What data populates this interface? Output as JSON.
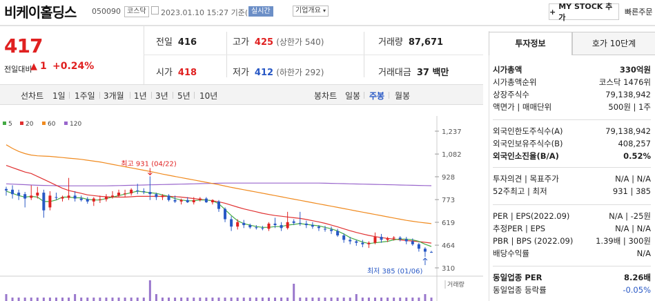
{
  "header": {
    "company_name": "비케이홀딩스",
    "code": "050090",
    "market": "코스닥",
    "datetime": "2023.01.10 15:27 기준(장중)",
    "realtime": "실시간",
    "company_overview": "기업개요",
    "mystock_label": "MY STOCK 추가",
    "quick_order": "빠른주문"
  },
  "price": {
    "current": "417",
    "change_label": "전일대비",
    "change": "1",
    "change_pct": "+0.24%"
  },
  "stats": {
    "prev_label": "전일",
    "prev": "416",
    "high_label": "고가",
    "high": "425",
    "upper_limit": "(상한가 540)",
    "volume_label": "거래량",
    "volume": "87,671",
    "open_label": "시가",
    "open": "418",
    "low_label": "저가",
    "low": "412",
    "lower_limit": "(하한가 292)",
    "amount_label": "거래대금",
    "amount": "37 백만"
  },
  "tabs": {
    "line_chart": "선차트",
    "periods": [
      "1일",
      "1주일",
      "3개월",
      "1년",
      "3년",
      "5년",
      "10년"
    ],
    "candle_chart": "봉차트",
    "candles": [
      "일봉",
      "주봉",
      "월봉"
    ],
    "active_candle": "주봉"
  },
  "chart": {
    "legend": [
      {
        "label": "5",
        "color": "#44aa44"
      },
      {
        "label": "20",
        "color": "#e03030"
      },
      {
        "label": "60",
        "color": "#f08a1e"
      },
      {
        "label": "120",
        "color": "#9966cc"
      }
    ],
    "y_ticks": [
      "1,237",
      "1,082",
      "928",
      "773",
      "619",
      "464",
      "310"
    ],
    "high_annotation": "최고 931 (04/22)",
    "low_annotation": "최저 385 (01/06)",
    "volume_label": "거래량"
  },
  "chart_data": {
    "type": "candlestick",
    "ylim": [
      310,
      1237
    ],
    "y_ticks": [
      1237,
      1082,
      928,
      773,
      619,
      464,
      310
    ],
    "candles": [
      [
        845,
        860,
        800,
        835
      ],
      [
        840,
        870,
        780,
        810
      ],
      [
        820,
        840,
        770,
        800
      ],
      [
        810,
        825,
        720,
        780
      ],
      [
        785,
        870,
        770,
        800
      ],
      [
        800,
        860,
        780,
        820
      ],
      [
        820,
        840,
        650,
        700
      ],
      [
        720,
        830,
        700,
        800
      ],
      [
        790,
        820,
        770,
        785
      ],
      [
        780,
        800,
        760,
        790
      ],
      [
        785,
        920,
        770,
        800
      ],
      [
        800,
        830,
        760,
        780
      ],
      [
        780,
        800,
        760,
        770
      ],
      [
        775,
        790,
        745,
        760
      ],
      [
        760,
        790,
        730,
        780
      ],
      [
        770,
        800,
        750,
        775
      ],
      [
        775,
        810,
        760,
        790
      ],
      [
        790,
        830,
        780,
        800
      ],
      [
        800,
        840,
        790,
        820
      ],
      [
        810,
        840,
        790,
        815
      ],
      [
        815,
        850,
        800,
        840
      ],
      [
        835,
        880,
        810,
        830
      ],
      [
        830,
        850,
        810,
        825
      ],
      [
        825,
        931,
        770,
        810
      ],
      [
        810,
        820,
        770,
        790
      ],
      [
        790,
        810,
        770,
        800
      ],
      [
        800,
        810,
        760,
        770
      ],
      [
        770,
        800,
        750,
        760
      ],
      [
        760,
        780,
        740,
        770
      ],
      [
        770,
        790,
        750,
        755
      ],
      [
        755,
        790,
        740,
        770
      ],
      [
        770,
        790,
        760,
        780
      ],
      [
        780,
        790,
        750,
        755
      ],
      [
        755,
        775,
        740,
        770
      ],
      [
        760,
        770,
        690,
        710
      ],
      [
        710,
        720,
        620,
        640
      ],
      [
        640,
        660,
        560,
        590
      ],
      [
        590,
        640,
        570,
        620
      ],
      [
        615,
        635,
        580,
        600
      ],
      [
        600,
        610,
        575,
        585
      ],
      [
        585,
        600,
        570,
        580
      ],
      [
        580,
        595,
        565,
        575
      ],
      [
        575,
        620,
        560,
        610
      ],
      [
        610,
        650,
        580,
        600
      ],
      [
        600,
        620,
        560,
        580
      ],
      [
        580,
        690,
        570,
        620
      ],
      [
        625,
        640,
        600,
        615
      ],
      [
        615,
        690,
        595,
        610
      ],
      [
        610,
        630,
        580,
        600
      ],
      [
        600,
        620,
        575,
        590
      ],
      [
        590,
        600,
        560,
        580
      ],
      [
        575,
        595,
        555,
        570
      ],
      [
        570,
        590,
        540,
        560
      ],
      [
        560,
        575,
        520,
        530
      ],
      [
        530,
        545,
        480,
        500
      ],
      [
        500,
        520,
        470,
        490
      ],
      [
        490,
        500,
        460,
        480
      ],
      [
        480,
        500,
        450,
        470
      ],
      [
        470,
        490,
        445,
        480
      ],
      [
        480,
        550,
        470,
        520
      ],
      [
        520,
        540,
        480,
        500
      ],
      [
        500,
        520,
        485,
        510
      ],
      [
        510,
        525,
        495,
        515
      ],
      [
        515,
        525,
        490,
        505
      ],
      [
        505,
        520,
        470,
        490
      ],
      [
        490,
        510,
        460,
        470
      ],
      [
        470,
        480,
        420,
        440
      ],
      [
        440,
        450,
        385,
        420
      ],
      [
        418,
        425,
        412,
        417
      ]
    ],
    "ma5": [
      830,
      815,
      800,
      790,
      795,
      790,
      760,
      760,
      770,
      790,
      790,
      785,
      785,
      775,
      770,
      770,
      780,
      790,
      800,
      810,
      820,
      830,
      825,
      820,
      815,
      805,
      795,
      780,
      770,
      765,
      765,
      770,
      770,
      765,
      745,
      705,
      665,
      630,
      610,
      600,
      590,
      585,
      585,
      590,
      590,
      600,
      605,
      610,
      605,
      600,
      595,
      585,
      575,
      560,
      540,
      515,
      500,
      485,
      475,
      480,
      485,
      490,
      500,
      505,
      505,
      500,
      490,
      470,
      455
    ],
    "ma20": [
      1005,
      990,
      975,
      960,
      950,
      930,
      910,
      890,
      870,
      850,
      835,
      825,
      815,
      805,
      800,
      795,
      792,
      790,
      790,
      790,
      792,
      795,
      795,
      795,
      795,
      795,
      795,
      793,
      790,
      785,
      780,
      775,
      770,
      765,
      758,
      748,
      735,
      722,
      710,
      700,
      690,
      680,
      672,
      665,
      660,
      655,
      650,
      645,
      638,
      630,
      622,
      612,
      600,
      588,
      575,
      562,
      550,
      540,
      530,
      522,
      515,
      510,
      505,
      500,
      495,
      492,
      488,
      483,
      478
    ],
    "ma60": [
      1145,
      1120,
      1100,
      1085,
      1075,
      1070,
      1068,
      1066,
      1062,
      1058,
      1054,
      1050,
      1046,
      1040,
      1034,
      1028,
      1020,
      1012,
      1004,
      996,
      988,
      980,
      972,
      964,
      955,
      946,
      938,
      930,
      922,
      914,
      906,
      898,
      890,
      882,
      874,
      865,
      856,
      848,
      840,
      832,
      824,
      816,
      808,
      800,
      792,
      784,
      776,
      768,
      760,
      752,
      744,
      736,
      728,
      720,
      712,
      704,
      696,
      688,
      680,
      672,
      664,
      656,
      648,
      640,
      632,
      626,
      620,
      615,
      610
    ],
    "ma120": [
      880,
      878,
      876,
      874,
      872,
      870,
      869,
      868,
      867,
      866,
      866,
      866,
      866,
      866,
      866,
      866,
      866,
      867,
      868,
      869,
      870,
      871,
      872,
      873,
      874,
      875,
      876,
      877,
      878,
      879,
      880,
      881,
      882,
      883,
      884,
      885,
      885,
      885,
      885,
      885,
      885,
      885,
      885,
      885,
      885,
      885,
      885,
      885,
      885,
      885,
      885,
      884,
      883,
      882,
      881,
      880,
      879,
      878,
      877,
      876,
      875,
      874,
      873,
      872,
      871,
      870,
      869,
      868,
      867
    ],
    "volume": [
      2,
      1,
      1,
      1,
      1,
      1,
      1,
      1,
      1,
      1,
      1,
      2,
      1,
      1,
      1,
      1,
      1,
      1,
      1,
      1,
      1,
      1,
      1,
      6,
      2,
      1,
      1,
      1,
      1,
      1,
      1,
      1,
      1,
      1,
      1,
      1,
      1,
      1,
      1,
      1,
      1,
      1,
      1,
      1,
      1,
      1,
      5,
      1,
      1,
      1,
      1,
      1,
      1,
      1,
      1,
      1,
      2,
      1,
      1,
      1,
      1,
      1,
      1,
      1,
      1,
      1,
      1,
      2,
      1
    ],
    "high_point": {
      "value": 931,
      "date": "04/22"
    },
    "low_point": {
      "value": 385,
      "date": "01/06"
    }
  },
  "invest_panel": {
    "tab_invest": "투자정보",
    "tab_order": "호가 10단계",
    "rows1": [
      {
        "label": "시가총액",
        "value": "330억원",
        "bold": true
      },
      {
        "label": "시가총액순위",
        "value": "코스닥 1476위"
      },
      {
        "label": "상장주식수",
        "value": "79,138,942"
      },
      {
        "label": "액면가 | 매매단위",
        "value": "500원 | 1주"
      }
    ],
    "rows2": [
      {
        "label": "외국인한도주식수(A)",
        "value": "79,138,942"
      },
      {
        "label": "외국인보유주식수(B)",
        "value": "408,257"
      },
      {
        "label": "외국인소진율(B/A)",
        "value": "0.52%",
        "bold": true
      }
    ],
    "rows3": [
      {
        "label": "투자의견 | 목표주가",
        "value": "N/A | N/A"
      },
      {
        "label": "52주최고 | 최저",
        "value": "931 | 385"
      }
    ],
    "rows4": [
      {
        "label": "PER | EPS(2022.09)",
        "value": "N/A | -25원"
      },
      {
        "label": "추정PER | EPS",
        "value": "N/A | N/A"
      },
      {
        "label": "PBR | BPS (2022.09)",
        "value": "1.39배 | 300원"
      },
      {
        "label": "배당수익률",
        "value": "N/A"
      }
    ],
    "rows5": [
      {
        "label": "동일업종 PER",
        "value": "8.26배",
        "bold": true
      },
      {
        "label": "동일업종 등락률",
        "value": "-0.05%",
        "blue": true
      }
    ]
  }
}
